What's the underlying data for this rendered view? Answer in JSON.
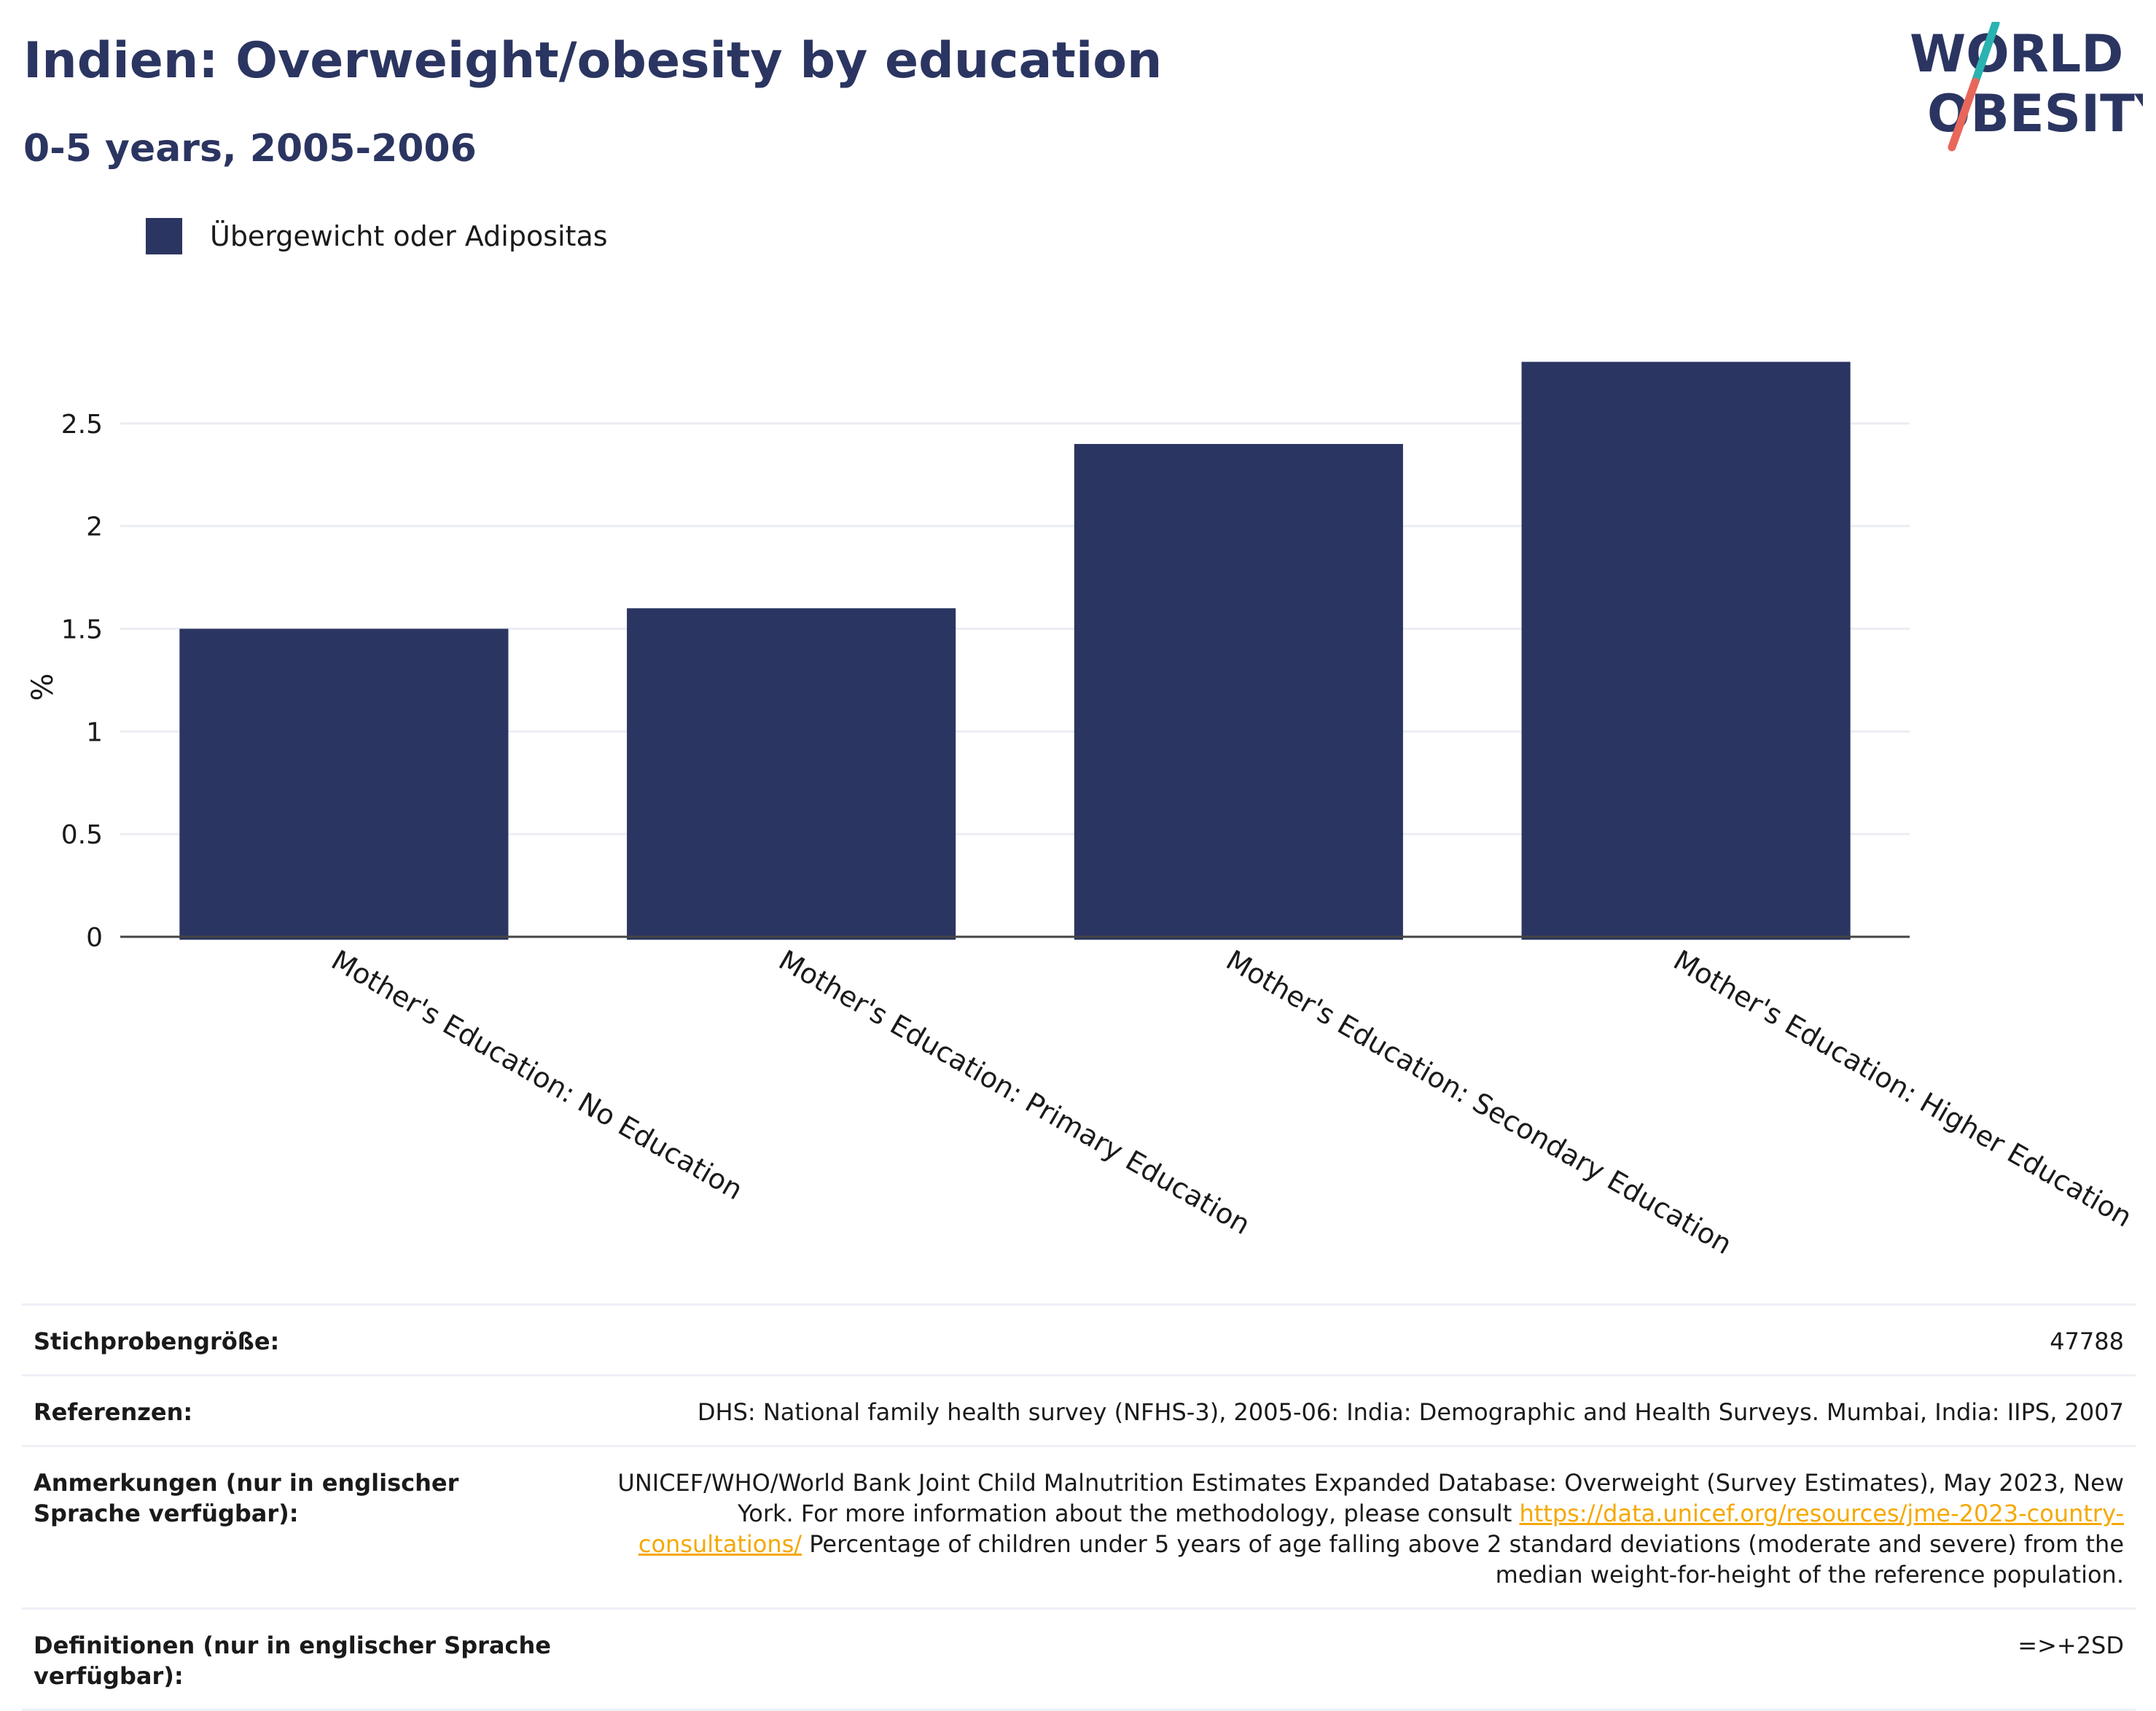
{
  "header": {
    "title": "Indien: Overweight/obesity by education",
    "subtitle": "0-5 years, 2005-2006"
  },
  "logo": {
    "line1": "WORLD",
    "line2": "OBESITY",
    "colors": {
      "text": "#2b3561",
      "slash_top": "#2ab3b1",
      "slash_bottom": "#e8675b"
    }
  },
  "legend": {
    "label": "Übergewicht oder Adipositas",
    "color": "#2b3561"
  },
  "chart_data": {
    "type": "bar",
    "categories": [
      "Mother's Education: No Education",
      "Mother's Education: Primary Education",
      "Mother's Education: Secondary Education",
      "Mother's Education: Higher Education"
    ],
    "series": [
      {
        "name": "Übergewicht oder Adipositas",
        "values": [
          1.5,
          1.6,
          2.4,
          2.8
        ],
        "color": "#2b3561"
      }
    ],
    "title": "Indien: Overweight/obesity by education",
    "subtitle": "0-5 years, 2005-2006",
    "xlabel": "",
    "ylabel": "%",
    "ylim": [
      0,
      3
    ],
    "yticks": [
      0,
      0.5,
      1,
      1.5,
      2,
      2.5
    ],
    "ytick_labels": [
      "0",
      "0.5",
      "1",
      "1.5",
      "2",
      "2.5"
    ],
    "grid": true,
    "legend_position": "top-left"
  },
  "info": {
    "sample_label": "Stichprobengröße:",
    "sample_value": "47788",
    "references_label": "Referenzen:",
    "references_value": "DHS: National family health survey (NFHS-3), 2005-06: India: Demographic and Health Surveys. Mumbai, India: IIPS, 2007",
    "notes_label": "Anmerkungen (nur in englischer Sprache verfügbar):",
    "notes_value_1": "UNICEF/WHO/World Bank Joint Child Malnutrition Estimates Expanded Database: Overweight (Survey Estimates), May 2023, New York. For more information about the methodology, please consult ",
    "notes_link": "https://data.unicef.org/resources/jme-2023-country-consultations/",
    "notes_value_2": " Percentage of children under 5 years of age falling above 2 standard deviations (moderate and severe) from the median weight-for-height of the reference population.",
    "definitions_label": "Definitionen (nur in englischer Sprache verfügbar):",
    "definitions_value": "=>+2SD"
  }
}
